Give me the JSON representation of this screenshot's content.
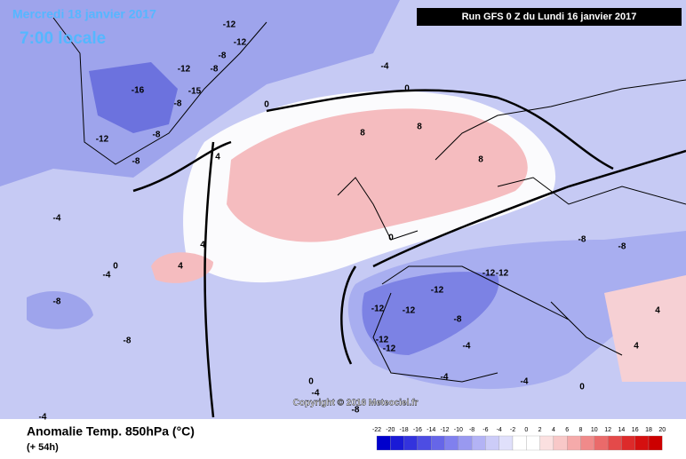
{
  "header": {
    "date": "Mercredi 18 janvier 2017",
    "time": "7:00 locale",
    "run": "Run GFS 0 Z du Lundi 16 janvier 2017"
  },
  "footer": {
    "title": "Anomalie Temp. 850hPa (°C)",
    "lead": "(+ 54h)",
    "copyright": "Copyright © 2016 Meteociel.fr"
  },
  "colorbar": {
    "ticks": [
      -22,
      -20,
      -18,
      -16,
      -14,
      -12,
      -10,
      -8,
      -6,
      -4,
      -2,
      0,
      2,
      4,
      6,
      8,
      10,
      12,
      14,
      16,
      18,
      20
    ],
    "colors": [
      "#0000cc",
      "#1a1ad6",
      "#3333dd",
      "#4d4de3",
      "#6666e8",
      "#8080ee",
      "#9999f0",
      "#b3b3f5",
      "#ccccf8",
      "#e0e0fb",
      "#ffffff",
      "#ffffff",
      "#fbe0e0",
      "#f8c8c8",
      "#f5aaaa",
      "#f08a8a",
      "#ea6a6a",
      "#e44a4a",
      "#dd2a2a",
      "#d51010",
      "#cc0000"
    ]
  },
  "contour_labels": [
    -12,
    -12,
    -8,
    -12,
    -8,
    -16,
    -15,
    -8,
    -12,
    -8,
    -8,
    -4,
    0,
    0,
    8,
    8,
    8,
    4,
    4,
    4,
    0,
    -4,
    -8,
    -4,
    -8,
    -4,
    -12,
    -12,
    -12,
    -12,
    -12,
    -12,
    -8,
    -8,
    -4,
    0,
    4,
    4,
    -4,
    0,
    -4,
    -8,
    -4,
    -12,
    0,
    -8
  ]
}
